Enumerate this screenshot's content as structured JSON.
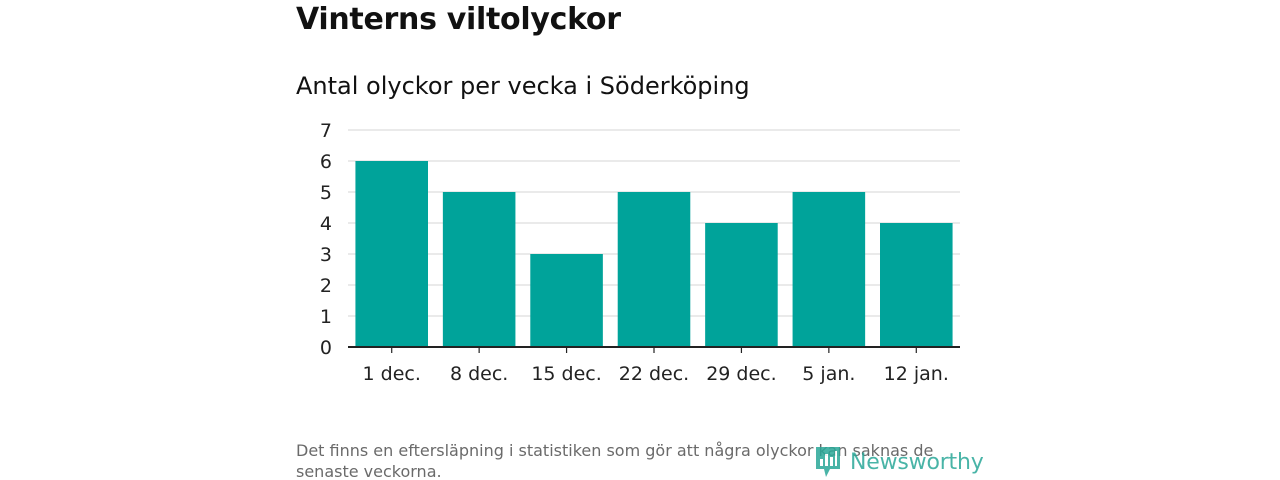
{
  "header": {
    "title": "Vinterns viltolyckor",
    "subtitle": "Antal olyckor per vecka i Söderköping"
  },
  "footer": {
    "note": "Det finns en eftersläpning i statistiken som gör att några olyckor kan saknas de senaste veckorna.",
    "brand": "Newsworthy"
  },
  "colors": {
    "bar": "#00a39a",
    "gridline": "#dddddd",
    "axis": "#222222",
    "brand": "#2aa898"
  },
  "chart_data": {
    "type": "bar",
    "title": "Vinterns viltolyckor",
    "subtitle": "Antal olyckor per vecka i Söderköping",
    "xlabel": "",
    "ylabel": "",
    "categories": [
      "1 dec.",
      "8 dec.",
      "15 dec.",
      "22 dec.",
      "29 dec.",
      "5 jan.",
      "12 jan."
    ],
    "values": [
      6,
      5,
      3,
      5,
      4,
      5,
      4
    ],
    "ylim": [
      0,
      7
    ],
    "yticks": [
      0,
      1,
      2,
      3,
      4,
      5,
      6,
      7
    ],
    "grid": true,
    "legend": "none"
  }
}
